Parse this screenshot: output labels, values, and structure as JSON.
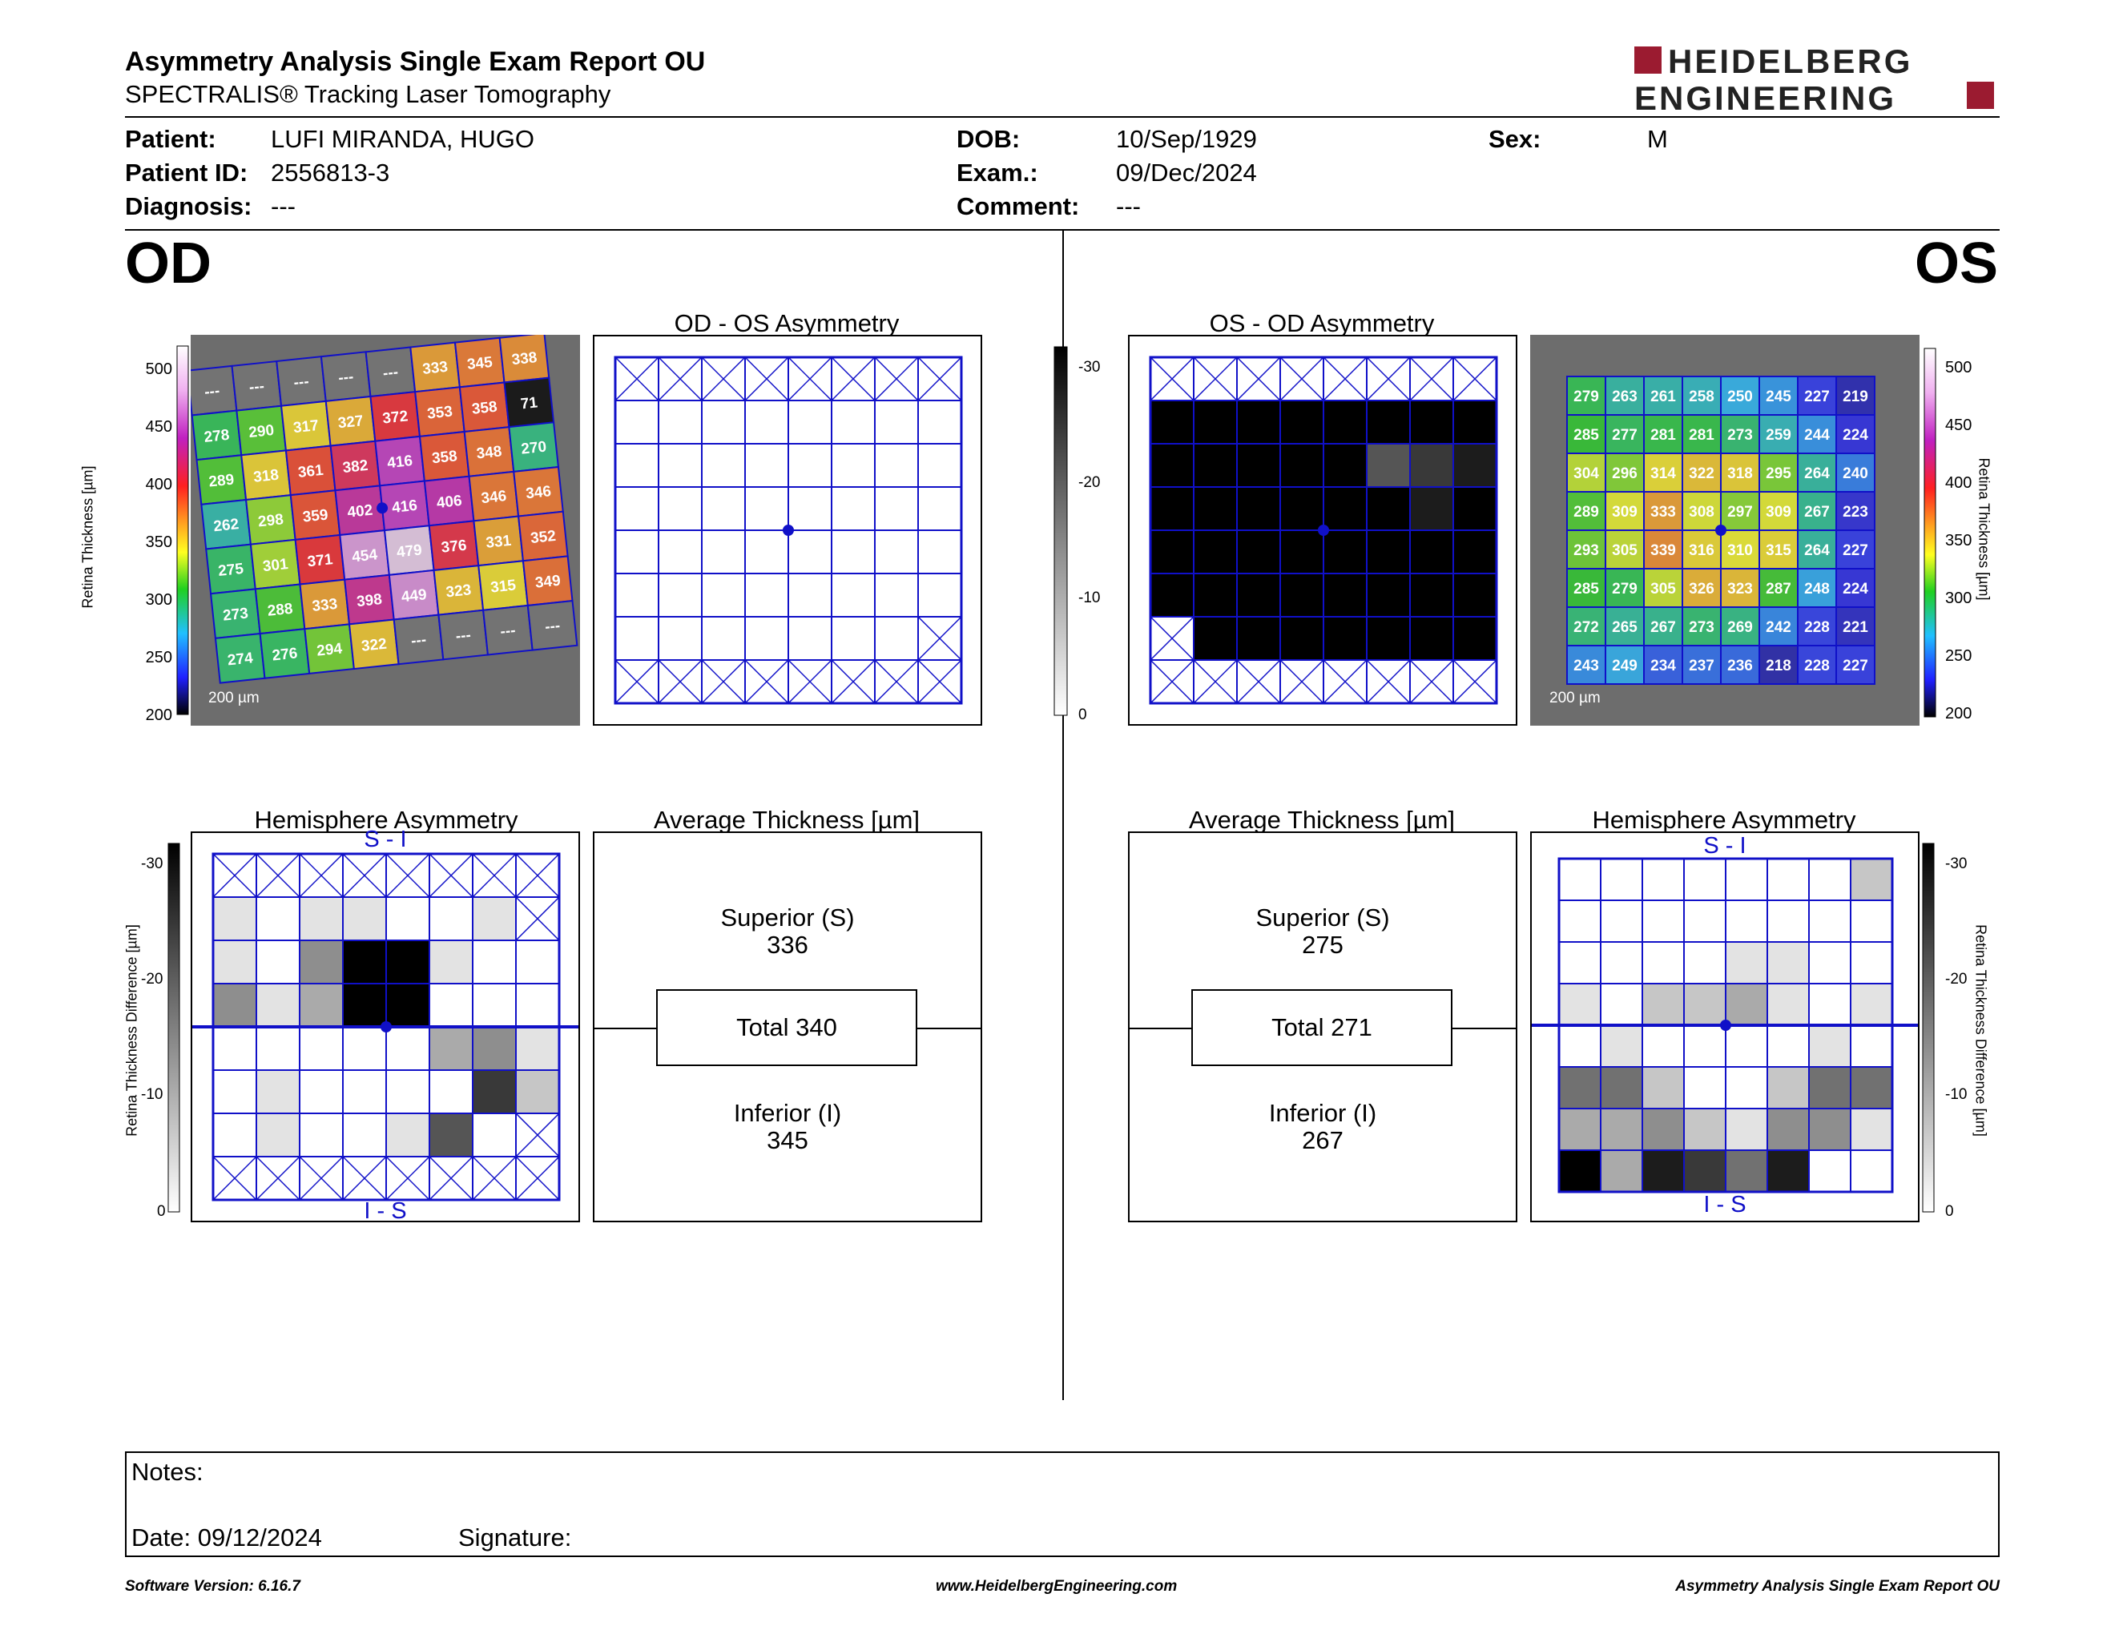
{
  "header": {
    "title": "Asymmetry Analysis Single Exam Report OU",
    "subtitle": "SPECTRALIS® Tracking Laser Tomography",
    "brand_line1": "HEIDELBERG",
    "brand_line2": "ENGINEERING",
    "brand_color": "#9b1b30"
  },
  "patient": {
    "patient_label": "Patient:",
    "patient_value": "LUFI MIRANDA, HUGO",
    "id_label": "Patient ID:",
    "id_value": "2556813-3",
    "diagnosis_label": "Diagnosis:",
    "diagnosis_value": "---",
    "dob_label": "DOB:",
    "dob_value": "10/Sep/1929",
    "exam_label": "Exam.:",
    "exam_value": "09/Dec/2024",
    "comment_label": "Comment:",
    "comment_value": "---",
    "sex_label": "Sex:",
    "sex_value": "M"
  },
  "od": {
    "eye_label": "OD",
    "asym_title": "OD - OS Asymmetry",
    "hemi_title": "Hemisphere Asymmetry",
    "hemi_top": "S - I",
    "hemi_bottom": "I - S",
    "avg_title": "Average Thickness [µm]",
    "superior_label": "Superior (S)",
    "superior_value": "336",
    "total_label": "Total 340",
    "inferior_label": "Inferior (I)",
    "inferior_value": "345",
    "scale_label": "200 µm",
    "thickness_grid": [
      [
        "---",
        "---",
        "---",
        "---",
        "---",
        "333",
        "345",
        "338"
      ],
      [
        "278",
        "290",
        "317",
        "327",
        "372",
        "353",
        "358",
        "71"
      ],
      [
        "289",
        "318",
        "361",
        "382",
        "416",
        "358",
        "348",
        "270"
      ],
      [
        "262",
        "298",
        "359",
        "402",
        "416",
        "406",
        "346",
        "346"
      ],
      [
        "275",
        "301",
        "371",
        "454",
        "479",
        "376",
        "331",
        "352"
      ],
      [
        "273",
        "288",
        "333",
        "398",
        "449",
        "323",
        "315",
        "349"
      ],
      [
        "274",
        "276",
        "294",
        "322",
        "---",
        "---",
        "---",
        "---"
      ]
    ],
    "hemi_grid": [
      [
        "x",
        "x",
        "x",
        "x",
        "x",
        "x",
        "x",
        "x"
      ],
      [
        1,
        0,
        1,
        1,
        0,
        0,
        1,
        "x"
      ],
      [
        1,
        0,
        4,
        9,
        9,
        1,
        0,
        0
      ],
      [
        4,
        1,
        3,
        9,
        9,
        0,
        0,
        0
      ],
      [
        0,
        0,
        0,
        0,
        0,
        3,
        4,
        1
      ],
      [
        0,
        1,
        0,
        0,
        0,
        0,
        7,
        2
      ],
      [
        0,
        1,
        0,
        0,
        1,
        6,
        0,
        "x"
      ],
      [
        "x",
        "x",
        "x",
        "x",
        "x",
        "x",
        "x",
        "x"
      ]
    ]
  },
  "os": {
    "eye_label": "OS",
    "asym_title": "OS - OD Asymmetry",
    "hemi_title": "Hemisphere Asymmetry",
    "hemi_top": "S - I",
    "hemi_bottom": "I - S",
    "avg_title": "Average Thickness [µm]",
    "superior_label": "Superior (S)",
    "superior_value": "275",
    "total_label": "Total 271",
    "inferior_label": "Inferior (I)",
    "inferior_value": "267",
    "scale_label": "200 µm",
    "thickness_grid": [
      [
        "279",
        "263",
        "261",
        "258",
        "250",
        "245",
        "227",
        "219"
      ],
      [
        "285",
        "277",
        "281",
        "281",
        "273",
        "259",
        "244",
        "224"
      ],
      [
        "304",
        "296",
        "314",
        "322",
        "318",
        "295",
        "264",
        "240"
      ],
      [
        "289",
        "309",
        "333",
        "308",
        "297",
        "309",
        "267",
        "223"
      ],
      [
        "293",
        "305",
        "339",
        "316",
        "310",
        "315",
        "264",
        "227"
      ],
      [
        "285",
        "279",
        "305",
        "326",
        "323",
        "287",
        "248",
        "224"
      ],
      [
        "272",
        "265",
        "267",
        "273",
        "269",
        "242",
        "228",
        "221"
      ],
      [
        "243",
        "249",
        "234",
        "237",
        "236",
        "218",
        "228",
        "227"
      ]
    ],
    "asym_grid": [
      [
        "x",
        "x",
        "x",
        "x",
        "x",
        "x",
        "x",
        "x"
      ],
      [
        9,
        9,
        9,
        9,
        9,
        9,
        9,
        9
      ],
      [
        9,
        9,
        9,
        9,
        9,
        6,
        7,
        8
      ],
      [
        9,
        9,
        9,
        9,
        9,
        9,
        8,
        9
      ],
      [
        9,
        9,
        9,
        9,
        9,
        9,
        9,
        9
      ],
      [
        9,
        9,
        9,
        9,
        9,
        9,
        9,
        9
      ],
      [
        "x",
        9,
        9,
        9,
        9,
        9,
        9,
        9
      ],
      [
        "x",
        "x",
        "x",
        "x",
        "x",
        "x",
        "x",
        "x"
      ]
    ],
    "hemi_grid": [
      [
        0,
        0,
        0,
        0,
        0,
        0,
        0,
        2
      ],
      [
        0,
        0,
        0,
        0,
        0,
        0,
        0,
        0
      ],
      [
        0,
        0,
        0,
        0,
        1,
        1,
        0,
        0
      ],
      [
        1,
        0,
        2,
        2,
        3,
        1,
        0,
        1
      ],
      [
        0,
        1,
        0,
        0,
        0,
        0,
        1,
        0
      ],
      [
        5,
        5,
        2,
        0,
        0,
        2,
        5,
        5
      ],
      [
        3,
        3,
        4,
        2,
        1,
        4,
        4,
        1
      ],
      [
        9,
        3,
        8,
        7,
        5,
        8,
        0,
        0
      ]
    ]
  },
  "scales": {
    "thickness_label": "Retina  Thickness [µm]",
    "thickness_ticks": [
      "500",
      "450",
      "400",
      "350",
      "300",
      "250",
      "200"
    ],
    "diff_label": "Retina Thickness Difference [µm]",
    "diff_ticks": [
      "-30",
      "-20",
      "-10",
      "0"
    ]
  },
  "notes": {
    "notes_label": "Notes:",
    "date_label": "Date: 09/12/2024",
    "signature_label": "Signature:"
  },
  "footer": {
    "software": "Software Version: 6.16.7",
    "website": "www.HeidelbergEngineering.com",
    "report": "Asymmetry Analysis Single Exam Report OU"
  },
  "colors": {
    "grid_blue": "#1010c8",
    "brand": "#9b1b30"
  }
}
